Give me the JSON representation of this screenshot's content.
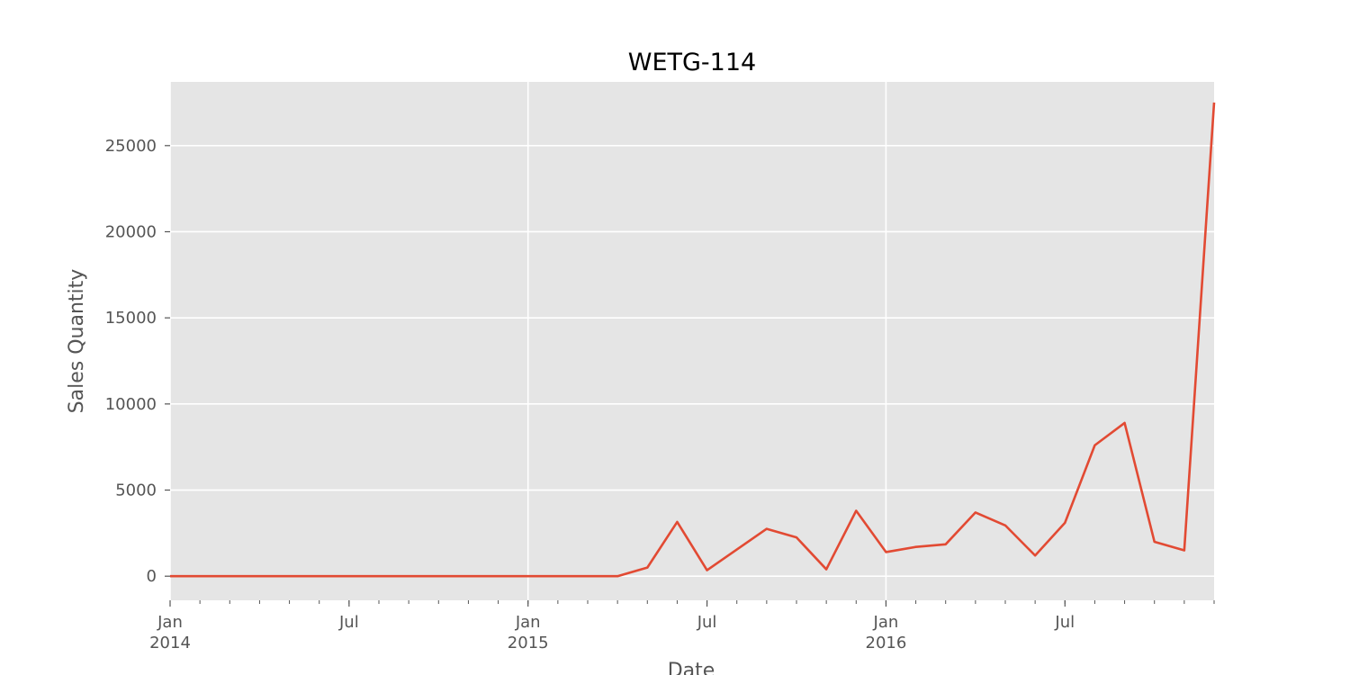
{
  "chart_data": {
    "type": "line",
    "title": "WETG-114",
    "xlabel": "Date",
    "ylabel": "Sales Quantity",
    "xlim": [
      "2014-01",
      "2016-12"
    ],
    "ylim": [
      -1400,
      28700
    ],
    "grid": true,
    "legend": "none",
    "yticks": [
      0,
      5000,
      10000,
      15000,
      20000,
      25000
    ],
    "xticks": [
      {
        "date": "2014-01",
        "label": "Jan",
        "sublabel": "2014"
      },
      {
        "date": "2014-07",
        "label": "Jul",
        "sublabel": ""
      },
      {
        "date": "2015-01",
        "label": "Jan",
        "sublabel": "2015"
      },
      {
        "date": "2015-07",
        "label": "Jul",
        "sublabel": ""
      },
      {
        "date": "2016-01",
        "label": "Jan",
        "sublabel": "2016"
      },
      {
        "date": "2016-07",
        "label": "Jul",
        "sublabel": ""
      }
    ],
    "series": [
      {
        "color": "#E24A33",
        "x": [
          "2014-01",
          "2014-02",
          "2014-03",
          "2014-04",
          "2014-05",
          "2014-06",
          "2014-07",
          "2014-08",
          "2014-09",
          "2014-10",
          "2014-11",
          "2014-12",
          "2015-01",
          "2015-02",
          "2015-03",
          "2015-04",
          "2015-05",
          "2015-06",
          "2015-07",
          "2015-08",
          "2015-09",
          "2015-10",
          "2015-11",
          "2015-12",
          "2016-01",
          "2016-02",
          "2016-03",
          "2016-04",
          "2016-05",
          "2016-06",
          "2016-07",
          "2016-08",
          "2016-09",
          "2016-10",
          "2016-11",
          "2016-12"
        ],
        "values": [
          0,
          0,
          0,
          0,
          0,
          0,
          0,
          0,
          0,
          0,
          0,
          0,
          0,
          0,
          0,
          0,
          500,
          3150,
          350,
          1550,
          2750,
          2250,
          400,
          3800,
          1400,
          1700,
          1850,
          3700,
          2950,
          1200,
          3100,
          7600,
          8900,
          2000,
          1500,
          27500
        ]
      }
    ]
  },
  "colors": {
    "plot_background": "#E5E5E5",
    "grid": "#FFFFFF",
    "line": "#E24A33",
    "tick_text": "#555555"
  }
}
